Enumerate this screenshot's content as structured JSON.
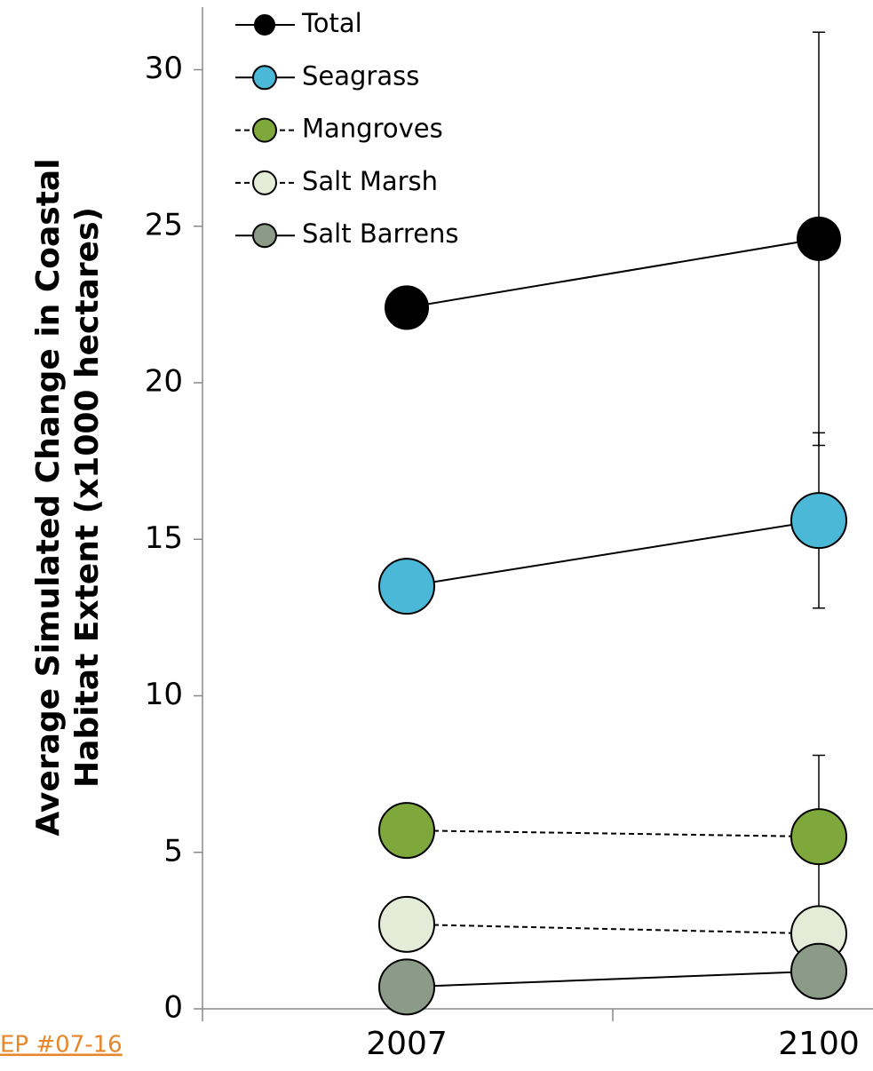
{
  "chart_data": {
    "type": "line",
    "ylabel": [
      "Average Simulated Change in Coastal",
      "Habitat Extent (x1000 hectares)"
    ],
    "categories": [
      "2007",
      "2100"
    ],
    "ylim": [
      0,
      32
    ],
    "yticks": [
      0,
      5,
      10,
      15,
      20,
      25,
      30
    ],
    "legend": "upper left",
    "series": [
      {
        "name": "Total",
        "color": "#000000",
        "dashed": false,
        "values": [
          22.4,
          24.6
        ],
        "errors": [
          null,
          6.6
        ]
      },
      {
        "name": "Seagrass",
        "color": "#4bb8d8",
        "dashed": false,
        "values": [
          13.5,
          15.6
        ],
        "errors": [
          null,
          2.8
        ]
      },
      {
        "name": "Mangroves",
        "color": "#7ea83c",
        "dashed": true,
        "values": [
          5.7,
          5.5
        ],
        "errors": [
          null,
          2.6
        ]
      },
      {
        "name": "Salt Marsh",
        "color": "#e4ecd8",
        "dashed": true,
        "values": [
          2.7,
          2.4
        ],
        "errors": [
          null,
          null
        ]
      },
      {
        "name": "Salt Barrens",
        "color": "#8c9a88",
        "dashed": false,
        "values": [
          0.7,
          1.2
        ],
        "errors": [
          null,
          null
        ]
      }
    ]
  },
  "footer": {
    "link": "EP #07-16"
  }
}
